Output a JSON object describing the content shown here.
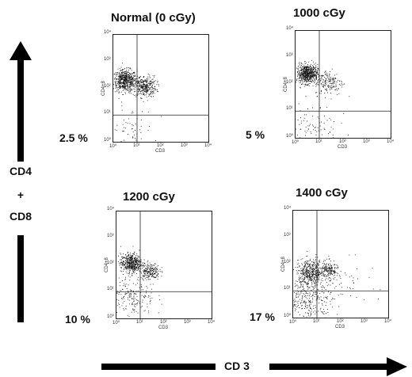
{
  "side_label": {
    "line1": "CD4",
    "plus": "+",
    "line2": "CD8"
  },
  "bottom_label": "CD 3",
  "axis": {
    "x_name": "CD3",
    "y_name": "CD4+8",
    "ticks": [
      "10⁰",
      "10¹",
      "10²",
      "10³",
      "10⁴"
    ]
  },
  "panels": [
    {
      "title": "Normal (0 cGy)",
      "percent": "2.5 %"
    },
    {
      "title": "1000 cGy",
      "percent": "5 %"
    },
    {
      "title": "1200 cGy",
      "percent": "10 %"
    },
    {
      "title": "1400 cGy",
      "percent": "17 %"
    }
  ],
  "chart_data": {
    "type": "scatter",
    "xlabel": "CD3",
    "ylabel": "CD4+8",
    "xscale": "log",
    "yscale": "log",
    "xlim": [
      1,
      10000
    ],
    "ylim": [
      1,
      10000
    ],
    "panels": [
      {
        "title": "Normal (0 cGy)",
        "lower_left_percent": 2.5,
        "clusters": [
          {
            "x_center": 3,
            "y_center": 200,
            "spread": 0.25,
            "count": 600
          },
          {
            "x_center": 20,
            "y_center": 120,
            "spread": 0.25,
            "count": 350
          },
          {
            "x_center": 5,
            "y_center": 3,
            "spread": 0.5,
            "count": 60
          }
        ]
      },
      {
        "title": "1000 cGy",
        "lower_left_percent": 5,
        "clusters": [
          {
            "x_center": 3,
            "y_center": 250,
            "spread": 0.22,
            "count": 650
          },
          {
            "x_center": 25,
            "y_center": 120,
            "spread": 0.3,
            "count": 180
          },
          {
            "x_center": 5,
            "y_center": 3,
            "spread": 0.55,
            "count": 90
          }
        ]
      },
      {
        "title": "1200 cGy",
        "lower_left_percent": 10,
        "clusters": [
          {
            "x_center": 4,
            "y_center": 120,
            "spread": 0.22,
            "count": 500
          },
          {
            "x_center": 25,
            "y_center": 60,
            "spread": 0.2,
            "count": 200
          },
          {
            "x_center": 4,
            "y_center": 6,
            "spread": 0.5,
            "count": 220
          }
        ]
      },
      {
        "title": "1400 cGy",
        "lower_left_percent": 17,
        "clusters": [
          {
            "x_center": 5,
            "y_center": 50,
            "spread": 0.3,
            "count": 450
          },
          {
            "x_center": 30,
            "y_center": 60,
            "spread": 0.2,
            "count": 180
          },
          {
            "x_center": 5,
            "y_center": 5,
            "spread": 0.5,
            "count": 320
          },
          {
            "x_center": 200,
            "y_center": 30,
            "spread": 0.6,
            "count": 40
          }
        ]
      }
    ],
    "gate": {
      "x": 10,
      "y": 10
    }
  }
}
